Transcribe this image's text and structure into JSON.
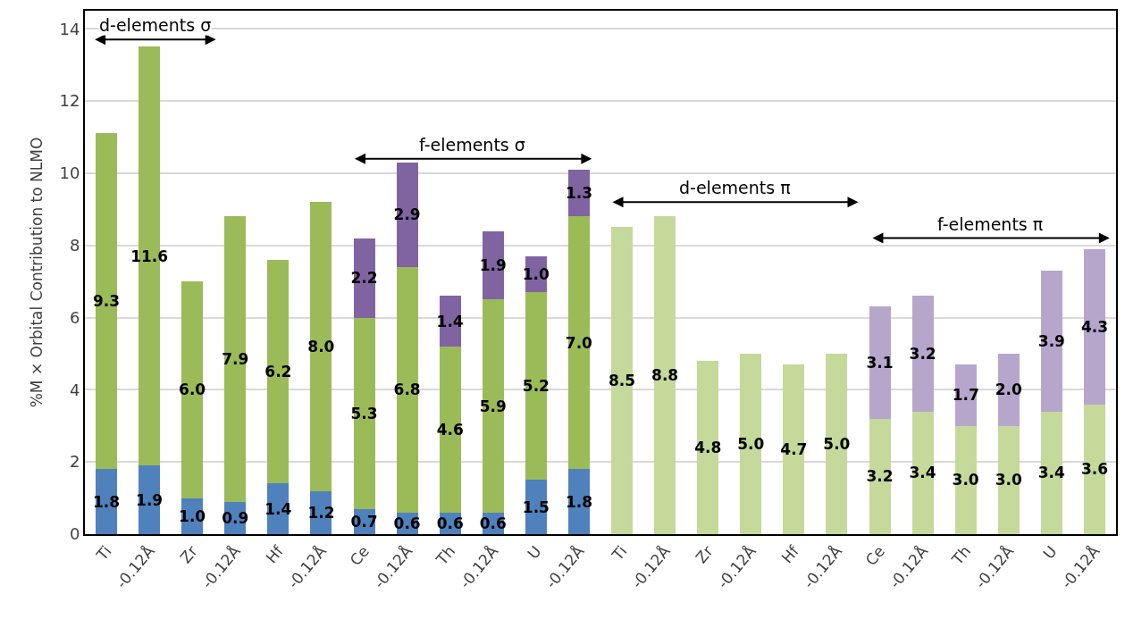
{
  "chart_data": {
    "type": "bar",
    "stacked": true,
    "ylabel": "%M × Orbital Contribution to NLMO",
    "categories": [
      "Ti",
      "-0.12Å",
      "Zr",
      "-0.12Å",
      "Hf",
      "-0.12Å",
      "Ce",
      "-0.12Å",
      "Th",
      "-0.12Å",
      "U",
      "-0.12Å",
      "Ti",
      "-0.12Å",
      "Zr",
      "-0.12Å",
      "Hf",
      "-0.12Å",
      "Ce",
      "-0.12Å",
      "Th",
      "-0.12Å",
      "U",
      "-0.12Å"
    ],
    "series": [
      {
        "color": "#4f81bd",
        "values": [
          1.8,
          1.9,
          1.0,
          0.9,
          1.4,
          1.2,
          0.7,
          0.6,
          0.6,
          0.6,
          1.5,
          1.8,
          null,
          null,
          null,
          null,
          null,
          null,
          null,
          null,
          null,
          null,
          null,
          null
        ],
        "value_labels": [
          "1.8",
          "1.9",
          "1.0",
          "0.9",
          "1.4",
          "1.2",
          "0.7",
          "0.6",
          "0.6",
          "0.6",
          "1.5",
          "1.8",
          null,
          null,
          null,
          null,
          null,
          null,
          null,
          null,
          null,
          null,
          null,
          null
        ]
      },
      {
        "color": "#9bbb59",
        "values": [
          9.3,
          11.6,
          6.0,
          7.9,
          6.2,
          8.0,
          5.3,
          6.8,
          4.6,
          5.9,
          5.2,
          7.0,
          null,
          null,
          null,
          null,
          null,
          null,
          null,
          null,
          null,
          null,
          null,
          null
        ],
        "value_labels": [
          "9.3",
          "11.6",
          "6.0",
          "7.9",
          "6.2",
          "8.0",
          "5.3",
          "6.8",
          "4.6",
          "5.9",
          "5.2",
          "7.0",
          null,
          null,
          null,
          null,
          null,
          null,
          null,
          null,
          null,
          null,
          null,
          null
        ]
      },
      {
        "color": "#8064a2",
        "values": [
          null,
          null,
          null,
          null,
          null,
          null,
          2.2,
          2.9,
          1.4,
          1.9,
          1.0,
          1.3,
          null,
          null,
          null,
          null,
          null,
          null,
          null,
          null,
          null,
          null,
          null,
          null
        ],
        "value_labels": [
          null,
          null,
          null,
          null,
          null,
          null,
          "2.2",
          "2.9",
          "1.4",
          "1.9",
          "1.0",
          "1.3",
          null,
          null,
          null,
          null,
          null,
          null,
          null,
          null,
          null,
          null,
          null,
          null
        ]
      },
      {
        "color": "#c5d99a",
        "values": [
          null,
          null,
          null,
          null,
          null,
          null,
          null,
          null,
          null,
          null,
          null,
          null,
          8.5,
          8.8,
          4.8,
          5.0,
          4.7,
          5.0,
          3.2,
          3.4,
          3.0,
          3.0,
          3.4,
          3.6
        ],
        "value_labels": [
          null,
          null,
          null,
          null,
          null,
          null,
          null,
          null,
          null,
          null,
          null,
          null,
          "8.5",
          "8.8",
          "4.8",
          "5.0",
          "4.7",
          "5.0",
          "3.2",
          "3.4",
          "3.0",
          "3.0",
          "3.4",
          "3.6"
        ]
      },
      {
        "color": "#b7a6cc",
        "values": [
          null,
          null,
          null,
          null,
          null,
          null,
          null,
          null,
          null,
          null,
          null,
          null,
          null,
          null,
          null,
          null,
          null,
          null,
          3.1,
          3.2,
          1.7,
          2.0,
          3.9,
          4.3
        ],
        "value_labels": [
          null,
          null,
          null,
          null,
          null,
          null,
          null,
          null,
          null,
          null,
          null,
          null,
          null,
          null,
          null,
          null,
          null,
          null,
          "3.1",
          "3.2",
          "1.7",
          "2.0",
          "3.9",
          "4.3"
        ]
      }
    ],
    "ylim": [
      0,
      14.5
    ],
    "yticks": [
      0,
      2,
      4,
      6,
      8,
      10,
      12,
      14
    ],
    "grid": "y",
    "annotations": [
      "d-elements σ",
      "f-elements σ",
      "d-elements π",
      "f-elements π"
    ]
  }
}
